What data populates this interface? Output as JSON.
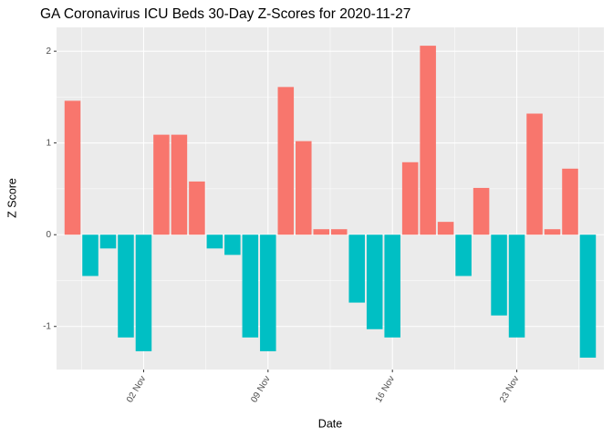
{
  "chart_data": {
    "type": "bar",
    "title": "GA Coronavirus ICU Beds 30-Day Z-Scores for 2020-11-27",
    "x_label": "Date",
    "y_label": "Z Score",
    "x": [
      "29 Oct",
      "30 Oct",
      "31 Oct",
      "01 Nov",
      "02 Nov",
      "03 Nov",
      "04 Nov",
      "05 Nov",
      "06 Nov",
      "07 Nov",
      "08 Nov",
      "09 Nov",
      "10 Nov",
      "11 Nov",
      "12 Nov",
      "13 Nov",
      "14 Nov",
      "15 Nov",
      "16 Nov",
      "17 Nov",
      "18 Nov",
      "19 Nov",
      "20 Nov",
      "21 Nov",
      "22 Nov",
      "23 Nov",
      "24 Nov",
      "25 Nov",
      "26 Nov",
      "27 Nov"
    ],
    "values": [
      1.46,
      -0.45,
      -0.15,
      -1.12,
      -1.27,
      1.09,
      1.09,
      0.58,
      -0.15,
      -0.22,
      -1.12,
      -1.27,
      1.61,
      1.02,
      0.06,
      0.06,
      -0.74,
      -1.03,
      -1.12,
      0.79,
      2.06,
      0.14,
      -0.45,
      0.51,
      -0.88,
      -1.12,
      1.32,
      0.06,
      0.72,
      -1.34
    ],
    "positive_color": "#F8766D",
    "negative_color": "#00BFC4",
    "xticks": [
      "02 Nov",
      "09 Nov",
      "16 Nov",
      "23 Nov"
    ],
    "ylim": [
      -1.47,
      2.26
    ],
    "yticks": [
      -1,
      0,
      1,
      2
    ],
    "grid": true
  }
}
